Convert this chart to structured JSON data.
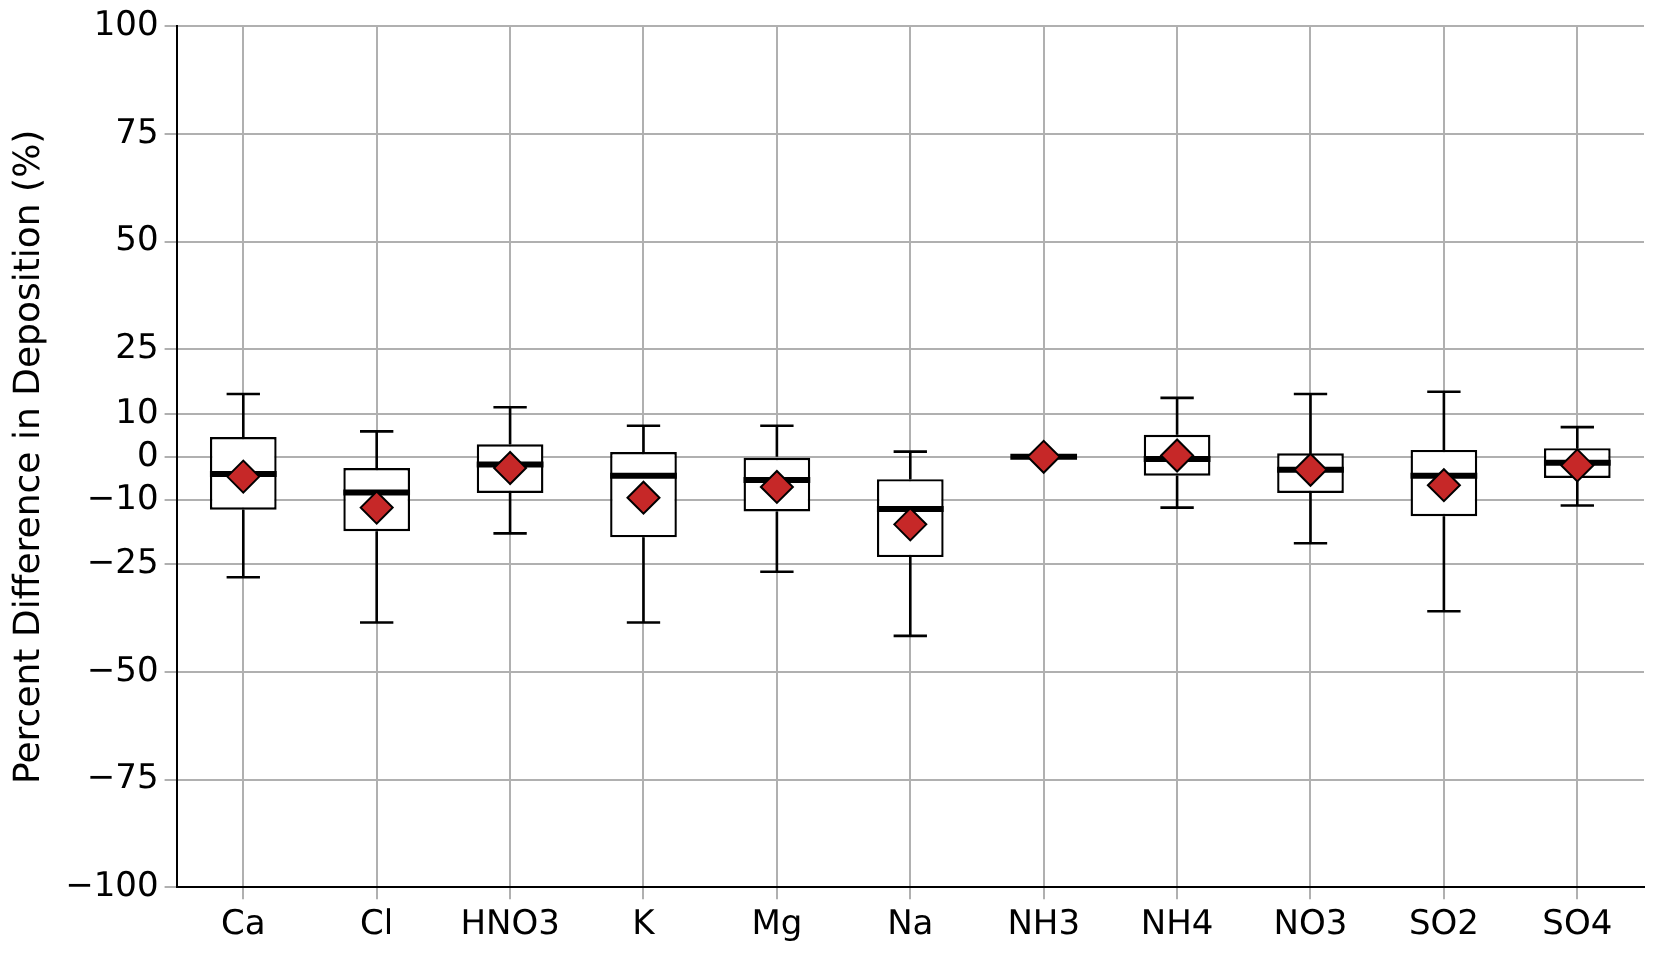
{
  "chart_data": {
    "type": "box",
    "ylabel": "Percent Difference in Deposition (%)",
    "categories": [
      "Ca",
      "Cl",
      "HNO3",
      "K",
      "Mg",
      "Na",
      "NH3",
      "NH4",
      "NO3",
      "SO2",
      "SO4"
    ],
    "boxes": [
      {
        "low": -28,
        "q1": -12.3,
        "median": -4,
        "q3": 4.6,
        "high": 14.6
      },
      {
        "low": -38.5,
        "q1": -17.3,
        "median": -8.3,
        "q3": -2.6,
        "high": 5.9
      },
      {
        "low": -17.8,
        "q1": -8.4,
        "median": -1.8,
        "q3": 2.9,
        "high": 11.5
      },
      {
        "low": -38.5,
        "q1": -18.7,
        "median": -4.4,
        "q3": 1.1,
        "high": 7.2
      },
      {
        "low": -26.7,
        "q1": -12.7,
        "median": -5.4,
        "q3": 0,
        "high": 7.2
      },
      {
        "low": -41.6,
        "q1": -23.3,
        "median": -12.1,
        "q3": -5.2,
        "high": 1.2
      },
      {
        "low": 0,
        "q1": 0,
        "median": 0,
        "q3": 0,
        "high": 0
      },
      {
        "low": -11.8,
        "q1": -4.4,
        "median": -0.5,
        "q3": 5.1,
        "high": 13.7
      },
      {
        "low": -20.1,
        "q1": -8.4,
        "median": -3,
        "q3": 0.8,
        "high": 14.6
      },
      {
        "low": -35.9,
        "q1": -13.8,
        "median": -4.4,
        "q3": 1.6,
        "high": 15.1
      },
      {
        "low": -11.3,
        "q1": -4.9,
        "median": -1.4,
        "q3": 2,
        "high": 6.9
      }
    ],
    "color": "#000000",
    "series": [
      {
        "type": "scatter",
        "color": "#c62828",
        "x": [
          "Ca",
          "Cl",
          "HNO3",
          "K",
          "Mg",
          "Na",
          "NH3",
          "NH4",
          "NO3",
          "SO2",
          "SO4"
        ],
        "values": [
          -4.6,
          -11.8,
          -2.6,
          -9.5,
          -7,
          -15.7,
          0,
          0.3,
          -3,
          -6.6,
          -2
        ]
      }
    ],
    "marker": "diamond",
    "ylim": [
      -100,
      100
    ],
    "yticks": [
      -100,
      -75,
      -50,
      -25,
      -10,
      0,
      10,
      25,
      50,
      75,
      100
    ],
    "grid": true,
    "legend": false
  }
}
